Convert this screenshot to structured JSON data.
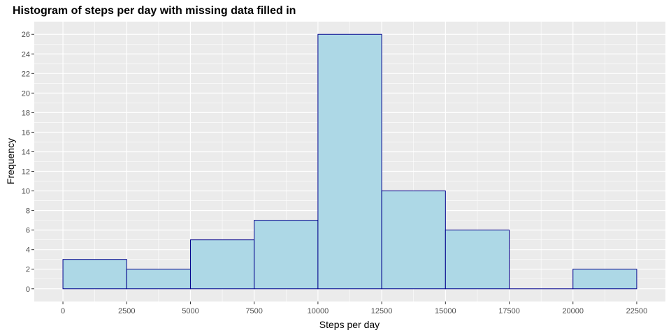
{
  "chart_data": {
    "type": "histogram",
    "title": "Histogram of steps per day with missing data filled in",
    "xlabel": "Steps per day",
    "ylabel": "Frequency",
    "bins": [
      {
        "from": 0,
        "to": 2500,
        "count": 3
      },
      {
        "from": 2500,
        "to": 5000,
        "count": 2
      },
      {
        "from": 5000,
        "to": 7500,
        "count": 5
      },
      {
        "from": 7500,
        "to": 10000,
        "count": 7
      },
      {
        "from": 10000,
        "to": 12500,
        "count": 26
      },
      {
        "from": 12500,
        "to": 15000,
        "count": 10
      },
      {
        "from": 15000,
        "to": 17500,
        "count": 6
      },
      {
        "from": 17500,
        "to": 20000,
        "count": 0
      },
      {
        "from": 20000,
        "to": 22500,
        "count": 2
      }
    ],
    "xlim": [
      -1125,
      23625
    ],
    "ylim": [
      -1.3,
      27.3
    ],
    "x_ticks": [
      0,
      2500,
      5000,
      7500,
      10000,
      12500,
      15000,
      17500,
      20000,
      22500
    ],
    "y_ticks": [
      0,
      2,
      4,
      6,
      8,
      10,
      12,
      14,
      16,
      18,
      20,
      22,
      24,
      26
    ],
    "grid": true,
    "colors": {
      "panel": "#ebebeb",
      "grid_major": "#ffffff",
      "bar_fill": "#add8e6",
      "bar_outline": "#00008b"
    }
  }
}
